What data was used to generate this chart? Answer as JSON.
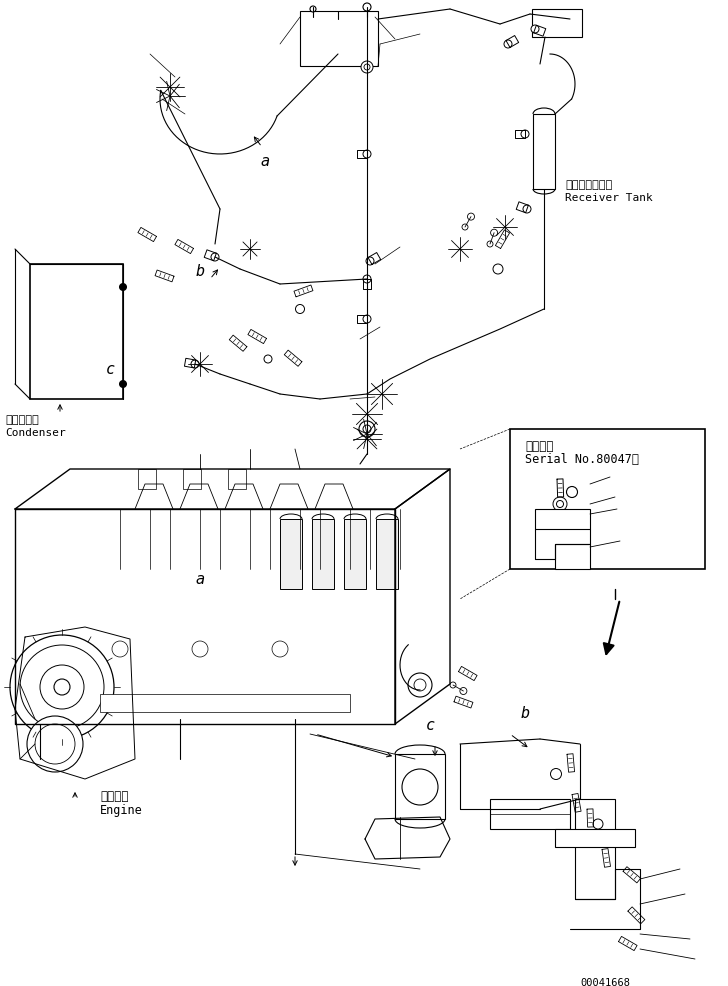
{
  "bg_color": "#ffffff",
  "fig_width": 7.28,
  "fig_height": 9.87,
  "dpi": 100,
  "label_engine_jp": "エンジン",
  "label_engine_en": "Engine",
  "label_condenser_jp": "コンデンサ",
  "label_condenser_en": "Condenser",
  "label_receiver_jp": "レシーバタンク",
  "label_receiver_en": "Receiver Tank",
  "label_serial_jp": "適用号機",
  "label_serial_en": "Serial No.80047～",
  "doc_number": "00041668",
  "line_color": "#000000",
  "line_width": 0.8
}
